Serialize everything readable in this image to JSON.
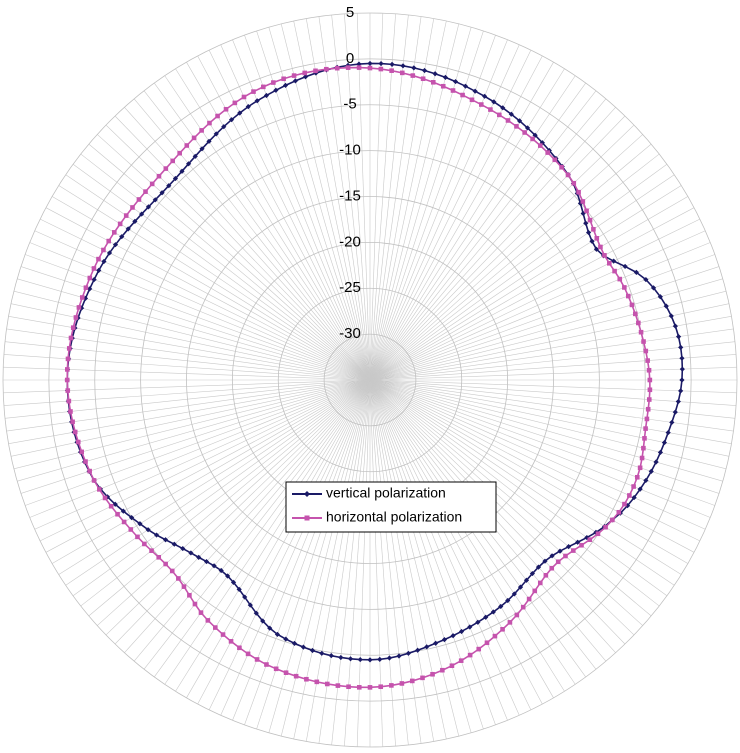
{
  "chart_data": {
    "type": "polar-line",
    "title": "",
    "r_axis": {
      "min": -35,
      "max": 5,
      "ticks": [
        5,
        0,
        -5,
        -10,
        -15,
        -20,
        -25,
        -30
      ]
    },
    "angle_step_deg": 2,
    "angle_reference": "0 deg at top, increasing clockwise",
    "grid": true,
    "legend_position": "center-bottom",
    "series": [
      {
        "name": "vertical polarization",
        "color": "#1a1a66",
        "marker": "diamond",
        "anchors_deg": [
          0,
          20,
          45,
          60,
          70,
          80,
          90,
          100,
          110,
          120,
          135,
          150,
          165,
          180,
          200,
          215,
          225,
          235,
          250,
          270,
          290,
          315,
          340,
          360
        ],
        "anchors_db": [
          -0.5,
          -1.5,
          -4,
          -6.5,
          -3,
          -1.2,
          -1.0,
          -2.0,
          -3.0,
          -4.5,
          -7.5,
          -6.5,
          -5.5,
          -4.5,
          -5.5,
          -8.5,
          -8.0,
          -6.0,
          -3.0,
          -2.0,
          -3.0,
          -4.5,
          -2.0,
          -0.5
        ]
      },
      {
        "name": "horizontal polarization",
        "color": "#c553ad",
        "marker": "square",
        "anchors_deg": [
          0,
          20,
          45,
          60,
          70,
          80,
          90,
          100,
          110,
          120,
          135,
          150,
          165,
          180,
          200,
          215,
          225,
          235,
          250,
          270,
          290,
          315,
          340,
          360
        ],
        "anchors_db": [
          -1.0,
          -2.5,
          -4,
          -6.0,
          -5.5,
          -5.0,
          -4.5,
          -4.5,
          -4.0,
          -4.5,
          -6.5,
          -4.5,
          -2.5,
          -1.5,
          -2.0,
          -3.5,
          -5.0,
          -4.5,
          -3.0,
          -2.0,
          -2.5,
          -3.0,
          -1.0,
          -1.0
        ]
      }
    ]
  }
}
